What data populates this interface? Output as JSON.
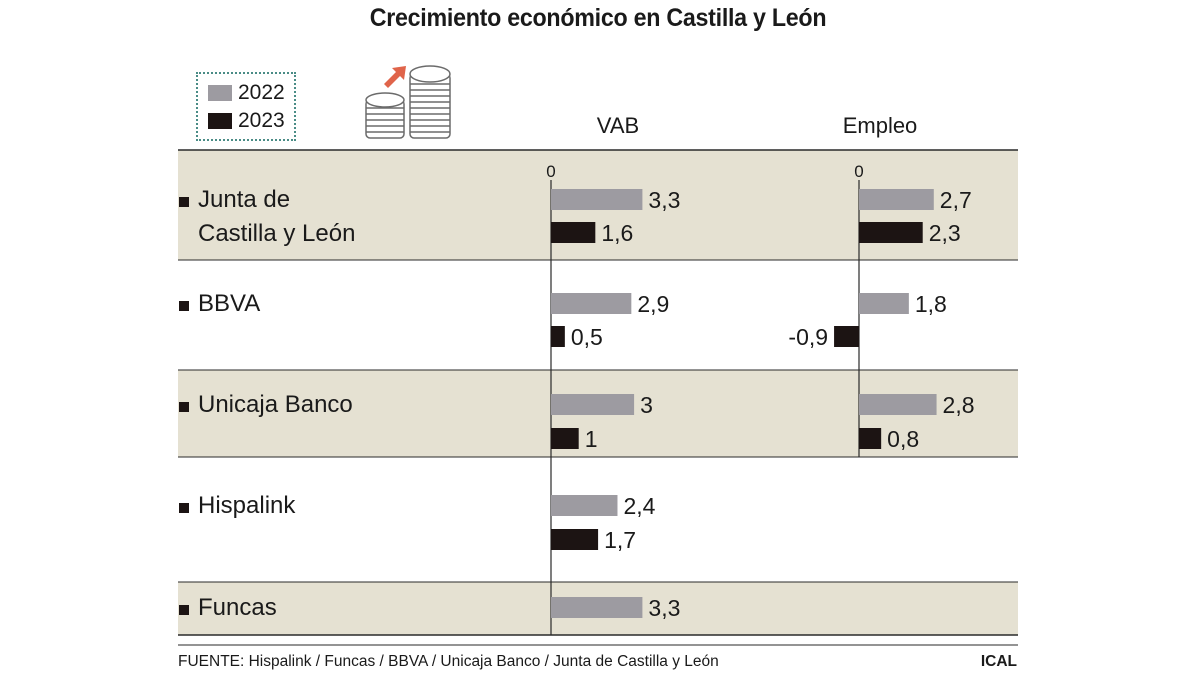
{
  "title": "Crecimiento económico en Castilla y León",
  "legend": [
    {
      "label": "2022",
      "color": "#9d9ba1"
    },
    {
      "label": "2023",
      "color": "#1c1413"
    }
  ],
  "icon": "coins-growth-icon",
  "colors": {
    "band": "#e5e1d2",
    "bar2022": "#9d9ba1",
    "bar2023": "#1c1413",
    "arrow": "#e0644a"
  },
  "chart_data": {
    "type": "bar",
    "orientation": "horizontal",
    "title": "Crecimiento económico en Castilla y León",
    "panels": [
      {
        "name": "VAB",
        "zero_label": "0"
      },
      {
        "name": "Empleo",
        "zero_label": "0"
      }
    ],
    "series": [
      {
        "name": "2022",
        "color": "#9d9ba1"
      },
      {
        "name": "2023",
        "color": "#1c1413"
      }
    ],
    "rows": [
      {
        "label": [
          "Junta de",
          "Castilla y León"
        ],
        "shaded": true,
        "VAB": {
          "2022": {
            "value": 3.3,
            "label": "3,3"
          },
          "2023": {
            "value": 1.6,
            "label": "1,6"
          }
        },
        "Empleo": {
          "2022": {
            "value": 2.7,
            "label": "2,7"
          },
          "2023": {
            "value": 2.3,
            "label": "2,3"
          }
        }
      },
      {
        "label": [
          "BBVA"
        ],
        "shaded": false,
        "VAB": {
          "2022": {
            "value": 2.9,
            "label": "2,9"
          },
          "2023": {
            "value": 0.5,
            "label": "0,5"
          }
        },
        "Empleo": {
          "2022": {
            "value": 1.8,
            "label": "1,8"
          },
          "2023": {
            "value": -0.9,
            "label": "-0,9"
          }
        }
      },
      {
        "label": [
          "Unicaja Banco"
        ],
        "shaded": true,
        "VAB": {
          "2022": {
            "value": 3.0,
            "label": "3"
          },
          "2023": {
            "value": 1.0,
            "label": "1"
          }
        },
        "Empleo": {
          "2022": {
            "value": 2.8,
            "label": "2,8"
          },
          "2023": {
            "value": 0.8,
            "label": "0,8"
          }
        }
      },
      {
        "label": [
          "Hispalink"
        ],
        "shaded": false,
        "VAB": {
          "2022": {
            "value": 2.4,
            "label": "2,4"
          },
          "2023": {
            "value": 1.7,
            "label": "1,7"
          }
        },
        "Empleo": null
      },
      {
        "label": [
          "Funcas"
        ],
        "shaded": true,
        "VAB": {
          "2022": {
            "value": 3.3,
            "label": "3,3"
          },
          "2023": null
        },
        "Empleo": null
      }
    ]
  },
  "footer": {
    "source": "FUENTE: Hispalink / Funcas / BBVA / Unicaja Banco / Junta de Castilla y León",
    "credit": "ICAL"
  }
}
